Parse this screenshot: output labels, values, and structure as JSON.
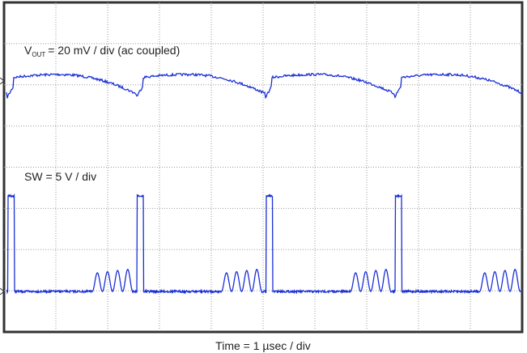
{
  "vout_label": {
    "main": "V",
    "subscript": "OUT",
    "rest": "= 20 mV / div (ac coupled)"
  },
  "sw_label": "SW = 5 V / div",
  "time_label": "Time = 1 µsec / div"
}
